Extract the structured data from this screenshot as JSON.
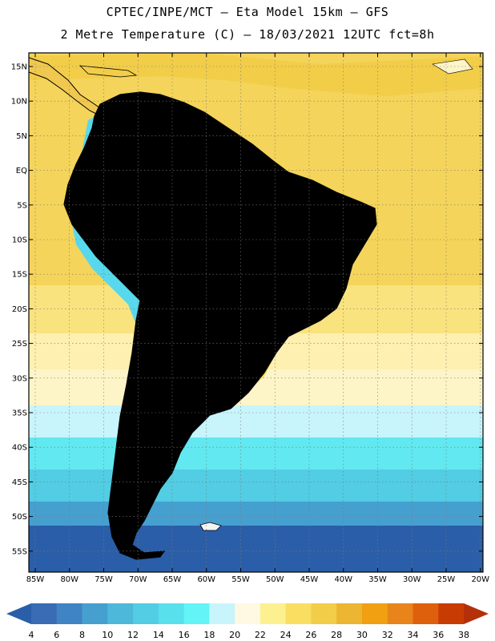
{
  "title": {
    "line1": "CPTEC/INPE/MCT  –   Eta Model 15km  –  GFS",
    "line2": "2 Metre Temperature (C)  –  18/03/2021 12UTC fct=8h"
  },
  "lat_labels": [
    "15N",
    "10N",
    "5N",
    "EQ",
    "5S",
    "10S",
    "15S",
    "20S",
    "25S",
    "30S",
    "35S",
    "40S",
    "45S",
    "50S",
    "55S"
  ],
  "lon_labels": [
    "85W",
    "80W",
    "75W",
    "70W",
    "65W",
    "60W",
    "55W",
    "50W",
    "45W",
    "40W",
    "35W",
    "30W",
    "25W",
    "20W"
  ],
  "colorbar": {
    "labels": [
      "4",
      "6",
      "8",
      "10",
      "12",
      "14",
      "16",
      "18",
      "20",
      "22",
      "24",
      "26",
      "28",
      "30",
      "32",
      "34",
      "36",
      "38"
    ],
    "colors": [
      "#3a6cb5",
      "#3f84c4",
      "#45a0d0",
      "#4db8da",
      "#52cde3",
      "#58e0ec",
      "#62f4f6",
      "#c8f4fc",
      "#fff8e2",
      "#fdf090",
      "#f9de62",
      "#f2cd48",
      "#ecb532",
      "#f0a010",
      "#e8841a",
      "#de600c",
      "#c83c04"
    ],
    "under_color": "#2a5ea8",
    "over_color": "#b43008"
  },
  "palette": {
    "land_warm": "#f0c850",
    "land_hot": "#e0961c",
    "land_hotter": "#c8621a",
    "ocean_tropical": "#f4d45a",
    "ocean_mid": "#fdf4c8",
    "ocean_cool": "#62e8f0",
    "ocean_cold": "#3a8cc8",
    "ocean_coldest": "#2a5ea8",
    "andes_cold": "#58d8ec",
    "coast": "#000000"
  }
}
